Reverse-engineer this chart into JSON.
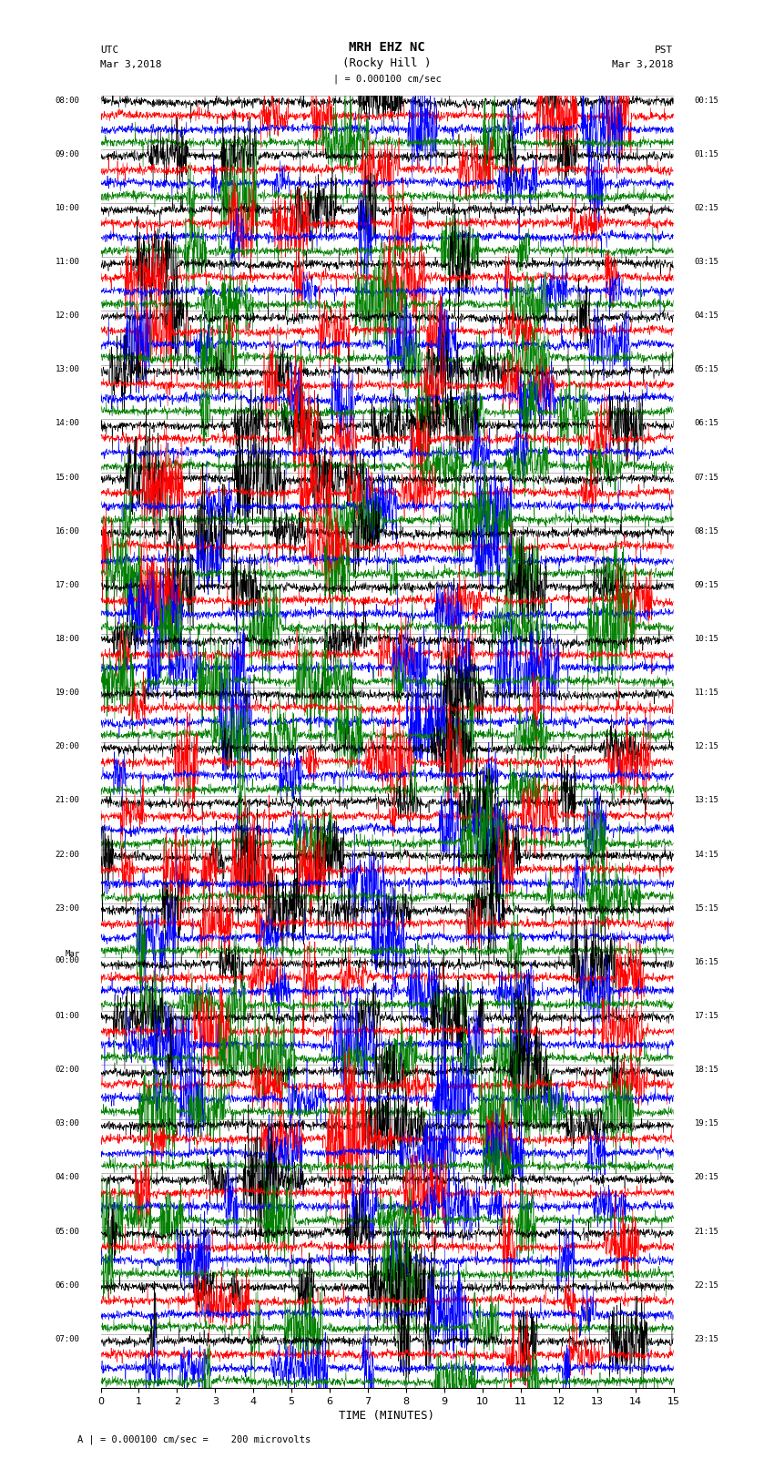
{
  "title_line1": "MRH EHZ NC",
  "title_line2": "(Rocky Hill )",
  "title_line3": "| = 0.000100 cm/sec",
  "label_utc": "UTC",
  "label_pst": "PST",
  "date_left": "Mar 3,2018",
  "date_right": "Mar 3,2018",
  "left_times": [
    "08:00",
    "09:00",
    "10:00",
    "11:00",
    "12:00",
    "13:00",
    "14:00",
    "15:00",
    "16:00",
    "17:00",
    "18:00",
    "19:00",
    "20:00",
    "21:00",
    "22:00",
    "23:00",
    "00:00",
    "01:00",
    "02:00",
    "03:00",
    "04:00",
    "05:00",
    "06:00",
    "07:00"
  ],
  "right_times": [
    "00:15",
    "01:15",
    "02:15",
    "03:15",
    "04:15",
    "05:15",
    "06:15",
    "07:15",
    "08:15",
    "09:15",
    "10:15",
    "11:15",
    "12:15",
    "13:15",
    "14:15",
    "15:15",
    "16:15",
    "17:15",
    "18:15",
    "19:15",
    "20:15",
    "21:15",
    "22:15",
    "23:15"
  ],
  "midnight_row": 16,
  "xlabel": "TIME (MINUTES)",
  "footer": "A | = 0.000100 cm/sec =    200 microvolts",
  "n_rows": 24,
  "n_traces_per_row": 4,
  "colors": [
    "black",
    "red",
    "blue",
    "green"
  ],
  "xlim": [
    0,
    15
  ],
  "xticks": [
    0,
    1,
    2,
    3,
    4,
    5,
    6,
    7,
    8,
    9,
    10,
    11,
    12,
    13,
    14,
    15
  ],
  "background": "white",
  "noise_amplitude": 0.3,
  "spike_probability": 0.012,
  "spike_amplitude": 1.8,
  "large_spike_probability": 0.002,
  "large_spike_amplitude": 4.0
}
